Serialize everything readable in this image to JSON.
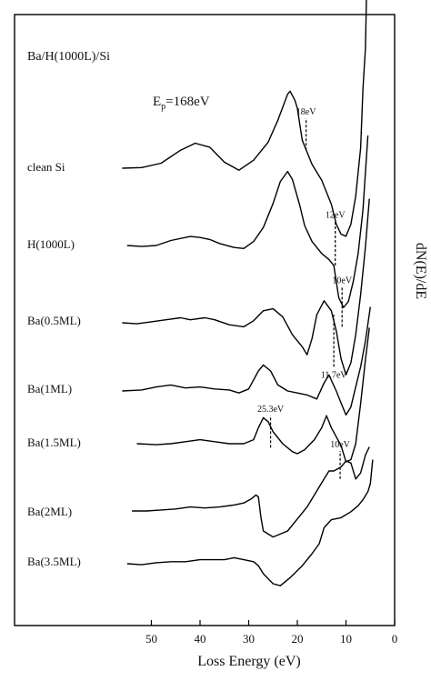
{
  "chart_data": {
    "type": "line",
    "title": "Ba/H(1000L)/Si",
    "annotation_energy": "E",
    "annotation_energy_sub": "p",
    "annotation_energy_value": "=168eV",
    "xlabel": "Loss Energy (eV)",
    "ylabel": "dN(E)/dE",
    "xlim": [
      56,
      0
    ],
    "x_reversed": true,
    "x_ticks": [
      "50",
      "40",
      "30",
      "20",
      "10",
      "0"
    ],
    "x_tick_values": [
      50,
      40,
      30,
      20,
      10,
      0
    ],
    "grid": false,
    "series": [
      {
        "name": "clean Si",
        "offset": 0,
        "points": [
          [
            56,
            0
          ],
          [
            52,
            0.3
          ],
          [
            48,
            2.5
          ],
          [
            44,
            9
          ],
          [
            41,
            12.5
          ],
          [
            38,
            10.5
          ],
          [
            35,
            3
          ],
          [
            32,
            -1
          ],
          [
            29,
            4
          ],
          [
            26,
            13
          ],
          [
            24,
            24
          ],
          [
            22,
            37
          ],
          [
            21.5,
            38.5
          ],
          [
            20.5,
            34
          ],
          [
            20,
            30
          ],
          [
            19,
            14
          ],
          [
            17,
            2
          ],
          [
            15,
            -6
          ],
          [
            13,
            -18
          ],
          [
            12,
            -28
          ],
          [
            11,
            -33
          ],
          [
            10,
            -34
          ],
          [
            9,
            -28
          ],
          [
            8,
            -14
          ],
          [
            7,
            10
          ],
          [
            6.5,
            40
          ],
          [
            6,
            60
          ],
          [
            5.8,
            85
          ]
        ],
        "markers": [
          {
            "label": "18eV",
            "x": 18.2,
            "y1": 9,
            "y2": 25
          }
        ]
      },
      {
        "name": "H(1000L)",
        "offset": 0,
        "points": [
          [
            55,
            0
          ],
          [
            52,
            -0.5
          ],
          [
            49,
            0
          ],
          [
            46,
            2.5
          ],
          [
            42,
            4.5
          ],
          [
            40,
            4
          ],
          [
            38,
            3
          ],
          [
            36,
            1
          ],
          [
            33,
            -1
          ],
          [
            31,
            -1.5
          ],
          [
            29,
            2
          ],
          [
            27,
            9
          ],
          [
            25,
            21
          ],
          [
            23.5,
            32
          ],
          [
            22,
            37
          ],
          [
            21,
            33
          ],
          [
            19.5,
            20
          ],
          [
            18.5,
            10
          ],
          [
            17,
            2
          ],
          [
            15,
            -4
          ],
          [
            13.5,
            -7
          ],
          [
            12.5,
            -10
          ],
          [
            11.5,
            -26
          ],
          [
            10.5,
            -31
          ],
          [
            9.5,
            -28
          ],
          [
            8.5,
            -18
          ],
          [
            7.5,
            -4
          ],
          [
            6.5,
            18
          ],
          [
            5.5,
            55
          ]
        ],
        "markers": [
          {
            "label": "12eV",
            "x": 12.2,
            "y1": -10,
            "y2": 12
          }
        ]
      },
      {
        "name": "Ba(0.5ML)",
        "offset": 0,
        "points": [
          [
            56,
            0
          ],
          [
            53,
            -0.5
          ],
          [
            50,
            0.5
          ],
          [
            47,
            1.5
          ],
          [
            44,
            2.5
          ],
          [
            42,
            1.5
          ],
          [
            39,
            2.5
          ],
          [
            37,
            1.5
          ],
          [
            34,
            -1
          ],
          [
            31,
            -2
          ],
          [
            29,
            1
          ],
          [
            27,
            6
          ],
          [
            25,
            7
          ],
          [
            23,
            3
          ],
          [
            21,
            -6
          ],
          [
            19,
            -12
          ],
          [
            18,
            -16
          ],
          [
            17,
            -8
          ],
          [
            16,
            4
          ],
          [
            14.5,
            11
          ],
          [
            13,
            6
          ],
          [
            12,
            -4
          ],
          [
            11,
            -18
          ],
          [
            10,
            -26
          ],
          [
            9,
            -20
          ],
          [
            8,
            -6
          ],
          [
            7,
            14
          ],
          [
            6,
            38
          ],
          [
            5.2,
            62
          ]
        ],
        "markers": [
          {
            "label": "10eV",
            "x": 10.8,
            "y1": -2,
            "y2": 18
          },
          {
            "label": "11.7eV",
            "x": 12.5,
            "y1": -22,
            "y2": 4,
            "label_below": true
          }
        ]
      },
      {
        "name": "Ba(1ML)",
        "offset": 0,
        "points": [
          [
            56,
            0
          ],
          [
            52,
            0.5
          ],
          [
            49,
            2
          ],
          [
            46,
            3
          ],
          [
            43,
            1.5
          ],
          [
            40,
            2
          ],
          [
            37,
            1
          ],
          [
            34,
            0.5
          ],
          [
            32,
            -1
          ],
          [
            30,
            1
          ],
          [
            28,
            10
          ],
          [
            27,
            13
          ],
          [
            25.5,
            10
          ],
          [
            24,
            3
          ],
          [
            22,
            0
          ],
          [
            20,
            -1
          ],
          [
            18,
            -2
          ],
          [
            16,
            -4
          ],
          [
            14.5,
            4
          ],
          [
            13.5,
            8
          ],
          [
            12,
            0
          ],
          [
            11,
            -6
          ],
          [
            10,
            -12
          ],
          [
            9,
            -8
          ],
          [
            8,
            2
          ],
          [
            7,
            12
          ],
          [
            6,
            25
          ],
          [
            5,
            42
          ]
        ],
        "markers": []
      },
      {
        "name": "Ba(1.5ML)",
        "offset": 0,
        "points": [
          [
            53,
            0
          ],
          [
            49,
            -0.5
          ],
          [
            46,
            0
          ],
          [
            43,
            1
          ],
          [
            40,
            2
          ],
          [
            37,
            1
          ],
          [
            34,
            0
          ],
          [
            31,
            0
          ],
          [
            29,
            2
          ],
          [
            28,
            8
          ],
          [
            27,
            13
          ],
          [
            26,
            11
          ],
          [
            25,
            6
          ],
          [
            23,
            0
          ],
          [
            21,
            -4
          ],
          [
            20,
            -5
          ],
          [
            18.5,
            -3
          ],
          [
            16.5,
            2
          ],
          [
            15,
            8
          ],
          [
            14,
            14
          ],
          [
            13,
            8
          ],
          [
            11,
            -1
          ],
          [
            10,
            -9
          ],
          [
            9,
            -8
          ],
          [
            8,
            0
          ],
          [
            7,
            20
          ],
          [
            6,
            42
          ],
          [
            5.2,
            58
          ]
        ],
        "markers": [
          {
            "label": "25.3eV",
            "x": 25.5,
            "y1": -2,
            "y2": 14
          }
        ]
      },
      {
        "name": "Ba(2ML)",
        "offset": 0,
        "points": [
          [
            54,
            0
          ],
          [
            51,
            0
          ],
          [
            48,
            0.5
          ],
          [
            45,
            1
          ],
          [
            42,
            2
          ],
          [
            39,
            1.5
          ],
          [
            36,
            2
          ],
          [
            33,
            3
          ],
          [
            31,
            4
          ],
          [
            29.5,
            6
          ],
          [
            28.5,
            8
          ],
          [
            28,
            7
          ],
          [
            27.5,
            -3
          ],
          [
            27,
            -10
          ],
          [
            25,
            -13
          ],
          [
            22,
            -10
          ],
          [
            20,
            -4
          ],
          [
            18,
            2
          ],
          [
            16,
            10
          ],
          [
            14.5,
            16
          ],
          [
            13.5,
            20
          ],
          [
            12.5,
            20
          ],
          [
            11,
            22
          ],
          [
            10,
            25
          ],
          [
            9,
            24
          ],
          [
            8,
            16
          ],
          [
            7,
            19
          ],
          [
            6,
            28
          ],
          [
            5.2,
            32
          ]
        ],
        "markers": [
          {
            "label": "10eV",
            "x": 11.2,
            "y1": 16,
            "y2": 30
          }
        ]
      },
      {
        "name": "Ba(3.5ML)",
        "offset": 0,
        "points": [
          [
            55,
            0
          ],
          [
            52,
            -0.5
          ],
          [
            49,
            0.5
          ],
          [
            46,
            1
          ],
          [
            43,
            1
          ],
          [
            40,
            2
          ],
          [
            37,
            2
          ],
          [
            35,
            2
          ],
          [
            33,
            3
          ],
          [
            31,
            2
          ],
          [
            29,
            1
          ],
          [
            28,
            -1
          ],
          [
            27,
            -5
          ],
          [
            25,
            -10
          ],
          [
            23.5,
            -11
          ],
          [
            21.5,
            -7
          ],
          [
            19,
            -1
          ],
          [
            17,
            5
          ],
          [
            15.5,
            10
          ],
          [
            14.5,
            18
          ],
          [
            13,
            22
          ],
          [
            11,
            23
          ],
          [
            9,
            26
          ],
          [
            7.5,
            29
          ],
          [
            6.5,
            32
          ],
          [
            5.5,
            36
          ],
          [
            5,
            40
          ],
          [
            4.5,
            52
          ]
        ],
        "markers": []
      }
    ]
  }
}
